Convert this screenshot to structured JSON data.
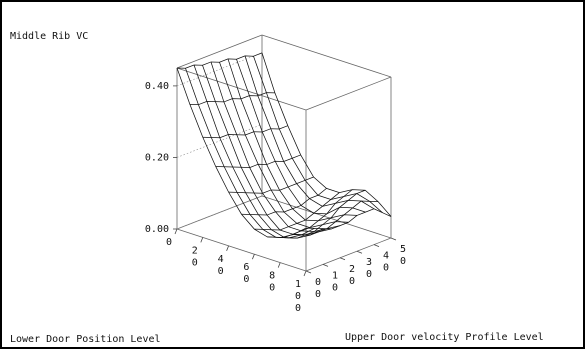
{
  "chart_data": {
    "type": "surface",
    "title": "",
    "zlabel": "Middle Rib VC",
    "xlabel": "Lower Door Position Level",
    "ylabel": "Upper Door velocity Profile Level",
    "z_ticks": [
      "0.00",
      "0.20",
      "0.40"
    ],
    "zlim": [
      0,
      0.45
    ],
    "x_ticks": [
      "0",
      "2\n0",
      "4\n0",
      "6\n0",
      "8\n0",
      "1\n0\n0"
    ],
    "y_ticks": [
      "0\n0",
      "1\n0",
      "2\n0",
      "3\n0",
      "4\n0",
      "5\n0"
    ],
    "x_values": [
      0,
      10,
      20,
      30,
      40,
      50,
      60,
      70,
      80,
      90,
      100
    ],
    "y_values": [
      0,
      5,
      10,
      15,
      20,
      25,
      30,
      35,
      40,
      45,
      50
    ],
    "grid": true,
    "surface_note": "",
    "z_values": [
      [
        0.45,
        0.44,
        0.44,
        0.43,
        0.43,
        0.42,
        0.42,
        0.41,
        0.41,
        0.4,
        0.4
      ],
      [
        0.36,
        0.35,
        0.35,
        0.34,
        0.33,
        0.33,
        0.32,
        0.32,
        0.31,
        0.31,
        0.3
      ],
      [
        0.28,
        0.27,
        0.26,
        0.26,
        0.25,
        0.24,
        0.24,
        0.23,
        0.23,
        0.22,
        0.22
      ],
      [
        0.21,
        0.2,
        0.19,
        0.18,
        0.17,
        0.17,
        0.16,
        0.16,
        0.15,
        0.15,
        0.15
      ],
      [
        0.15,
        0.14,
        0.13,
        0.12,
        0.11,
        0.11,
        0.1,
        0.1,
        0.1,
        0.1,
        0.1
      ],
      [
        0.1,
        0.09,
        0.08,
        0.07,
        0.07,
        0.06,
        0.06,
        0.06,
        0.07,
        0.07,
        0.08
      ],
      [
        0.07,
        0.06,
        0.05,
        0.04,
        0.04,
        0.04,
        0.04,
        0.05,
        0.06,
        0.07,
        0.08
      ],
      [
        0.06,
        0.05,
        0.04,
        0.04,
        0.04,
        0.04,
        0.05,
        0.06,
        0.08,
        0.09,
        0.1
      ],
      [
        0.07,
        0.06,
        0.05,
        0.05,
        0.05,
        0.06,
        0.07,
        0.09,
        0.1,
        0.11,
        0.11
      ],
      [
        0.09,
        0.08,
        0.07,
        0.07,
        0.07,
        0.08,
        0.09,
        0.1,
        0.11,
        0.1,
        0.09
      ],
      [
        0.12,
        0.11,
        0.1,
        0.09,
        0.09,
        0.09,
        0.1,
        0.1,
        0.1,
        0.08,
        0.06
      ]
    ]
  }
}
